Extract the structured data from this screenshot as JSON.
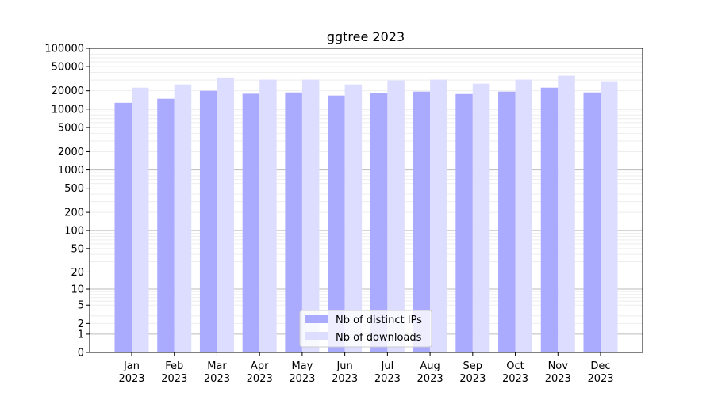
{
  "chart_data": {
    "type": "bar",
    "title": "ggtree 2023",
    "xlabel": "",
    "ylabel": "",
    "yscale": "log(1+y)",
    "ylim": [
      0,
      100000
    ],
    "grid": true,
    "legend_placement": "bottom-center",
    "categories": [
      "Jan\n2023",
      "Feb\n2023",
      "Mar\n2023",
      "Apr\n2023",
      "May\n2023",
      "Jun\n2023",
      "Jul\n2023",
      "Aug\n2023",
      "Sep\n2023",
      "Oct\n2023",
      "Nov\n2023",
      "Dec\n2023"
    ],
    "yticks": [
      0,
      1,
      2,
      5,
      10,
      20,
      50,
      100,
      200,
      500,
      1000,
      2000,
      5000,
      10000,
      20000,
      50000,
      100000
    ],
    "series": [
      {
        "name": "Nb of distinct IPs",
        "color": "#aaaaff",
        "values": [
          12700,
          14800,
          20000,
          17900,
          18800,
          16700,
          18300,
          19400,
          17700,
          19400,
          22500,
          18800
        ]
      },
      {
        "name": "Nb of downloads",
        "color": "#ddddff",
        "values": [
          22500,
          25400,
          33100,
          30500,
          30500,
          25400,
          29600,
          30500,
          26200,
          30500,
          35400,
          28700
        ]
      }
    ]
  }
}
